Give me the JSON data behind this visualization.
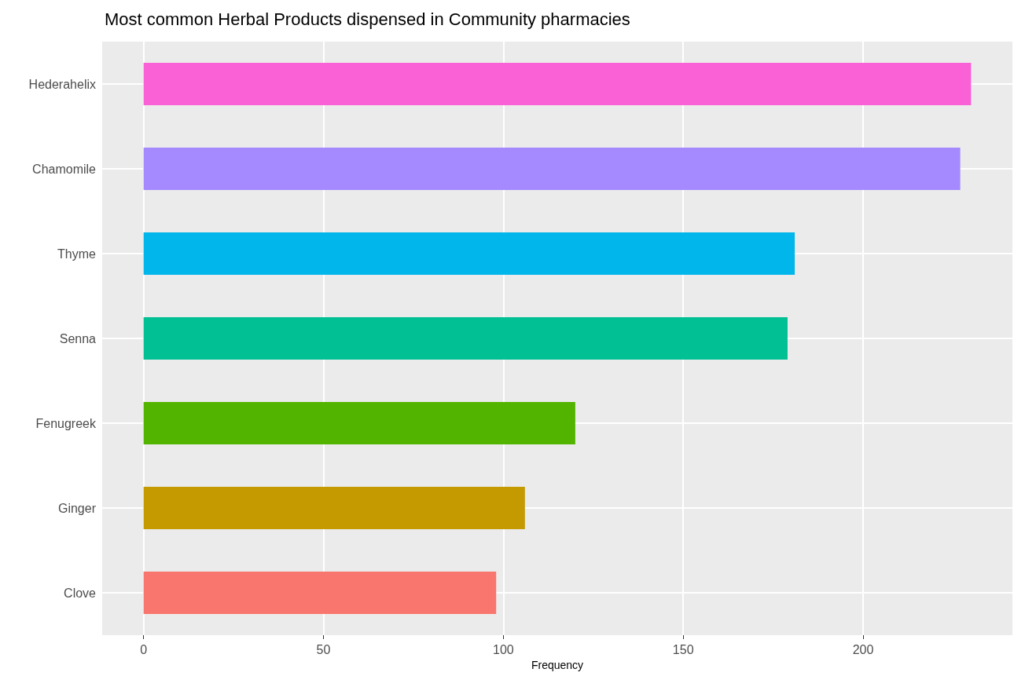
{
  "chart_data": {
    "type": "bar",
    "orientation": "horizontal",
    "title": "Most common Herbal Products dispensed in Community pharmacies",
    "xlabel": "Frequency",
    "categories": [
      "Hederahelix",
      "Chamomile",
      "Thyme",
      "Senna",
      "Fenugreek",
      "Ginger",
      "Clove"
    ],
    "values": [
      230,
      227,
      181,
      179,
      120,
      106,
      98
    ],
    "colors": [
      "#fb61d7",
      "#a58aff",
      "#00b6eb",
      "#00c094",
      "#53b400",
      "#c49a00",
      "#f8766d"
    ],
    "xlim": [
      -11.5,
      241.5
    ],
    "xticks": [
      0,
      50,
      100,
      150,
      200
    ],
    "grid": true
  }
}
